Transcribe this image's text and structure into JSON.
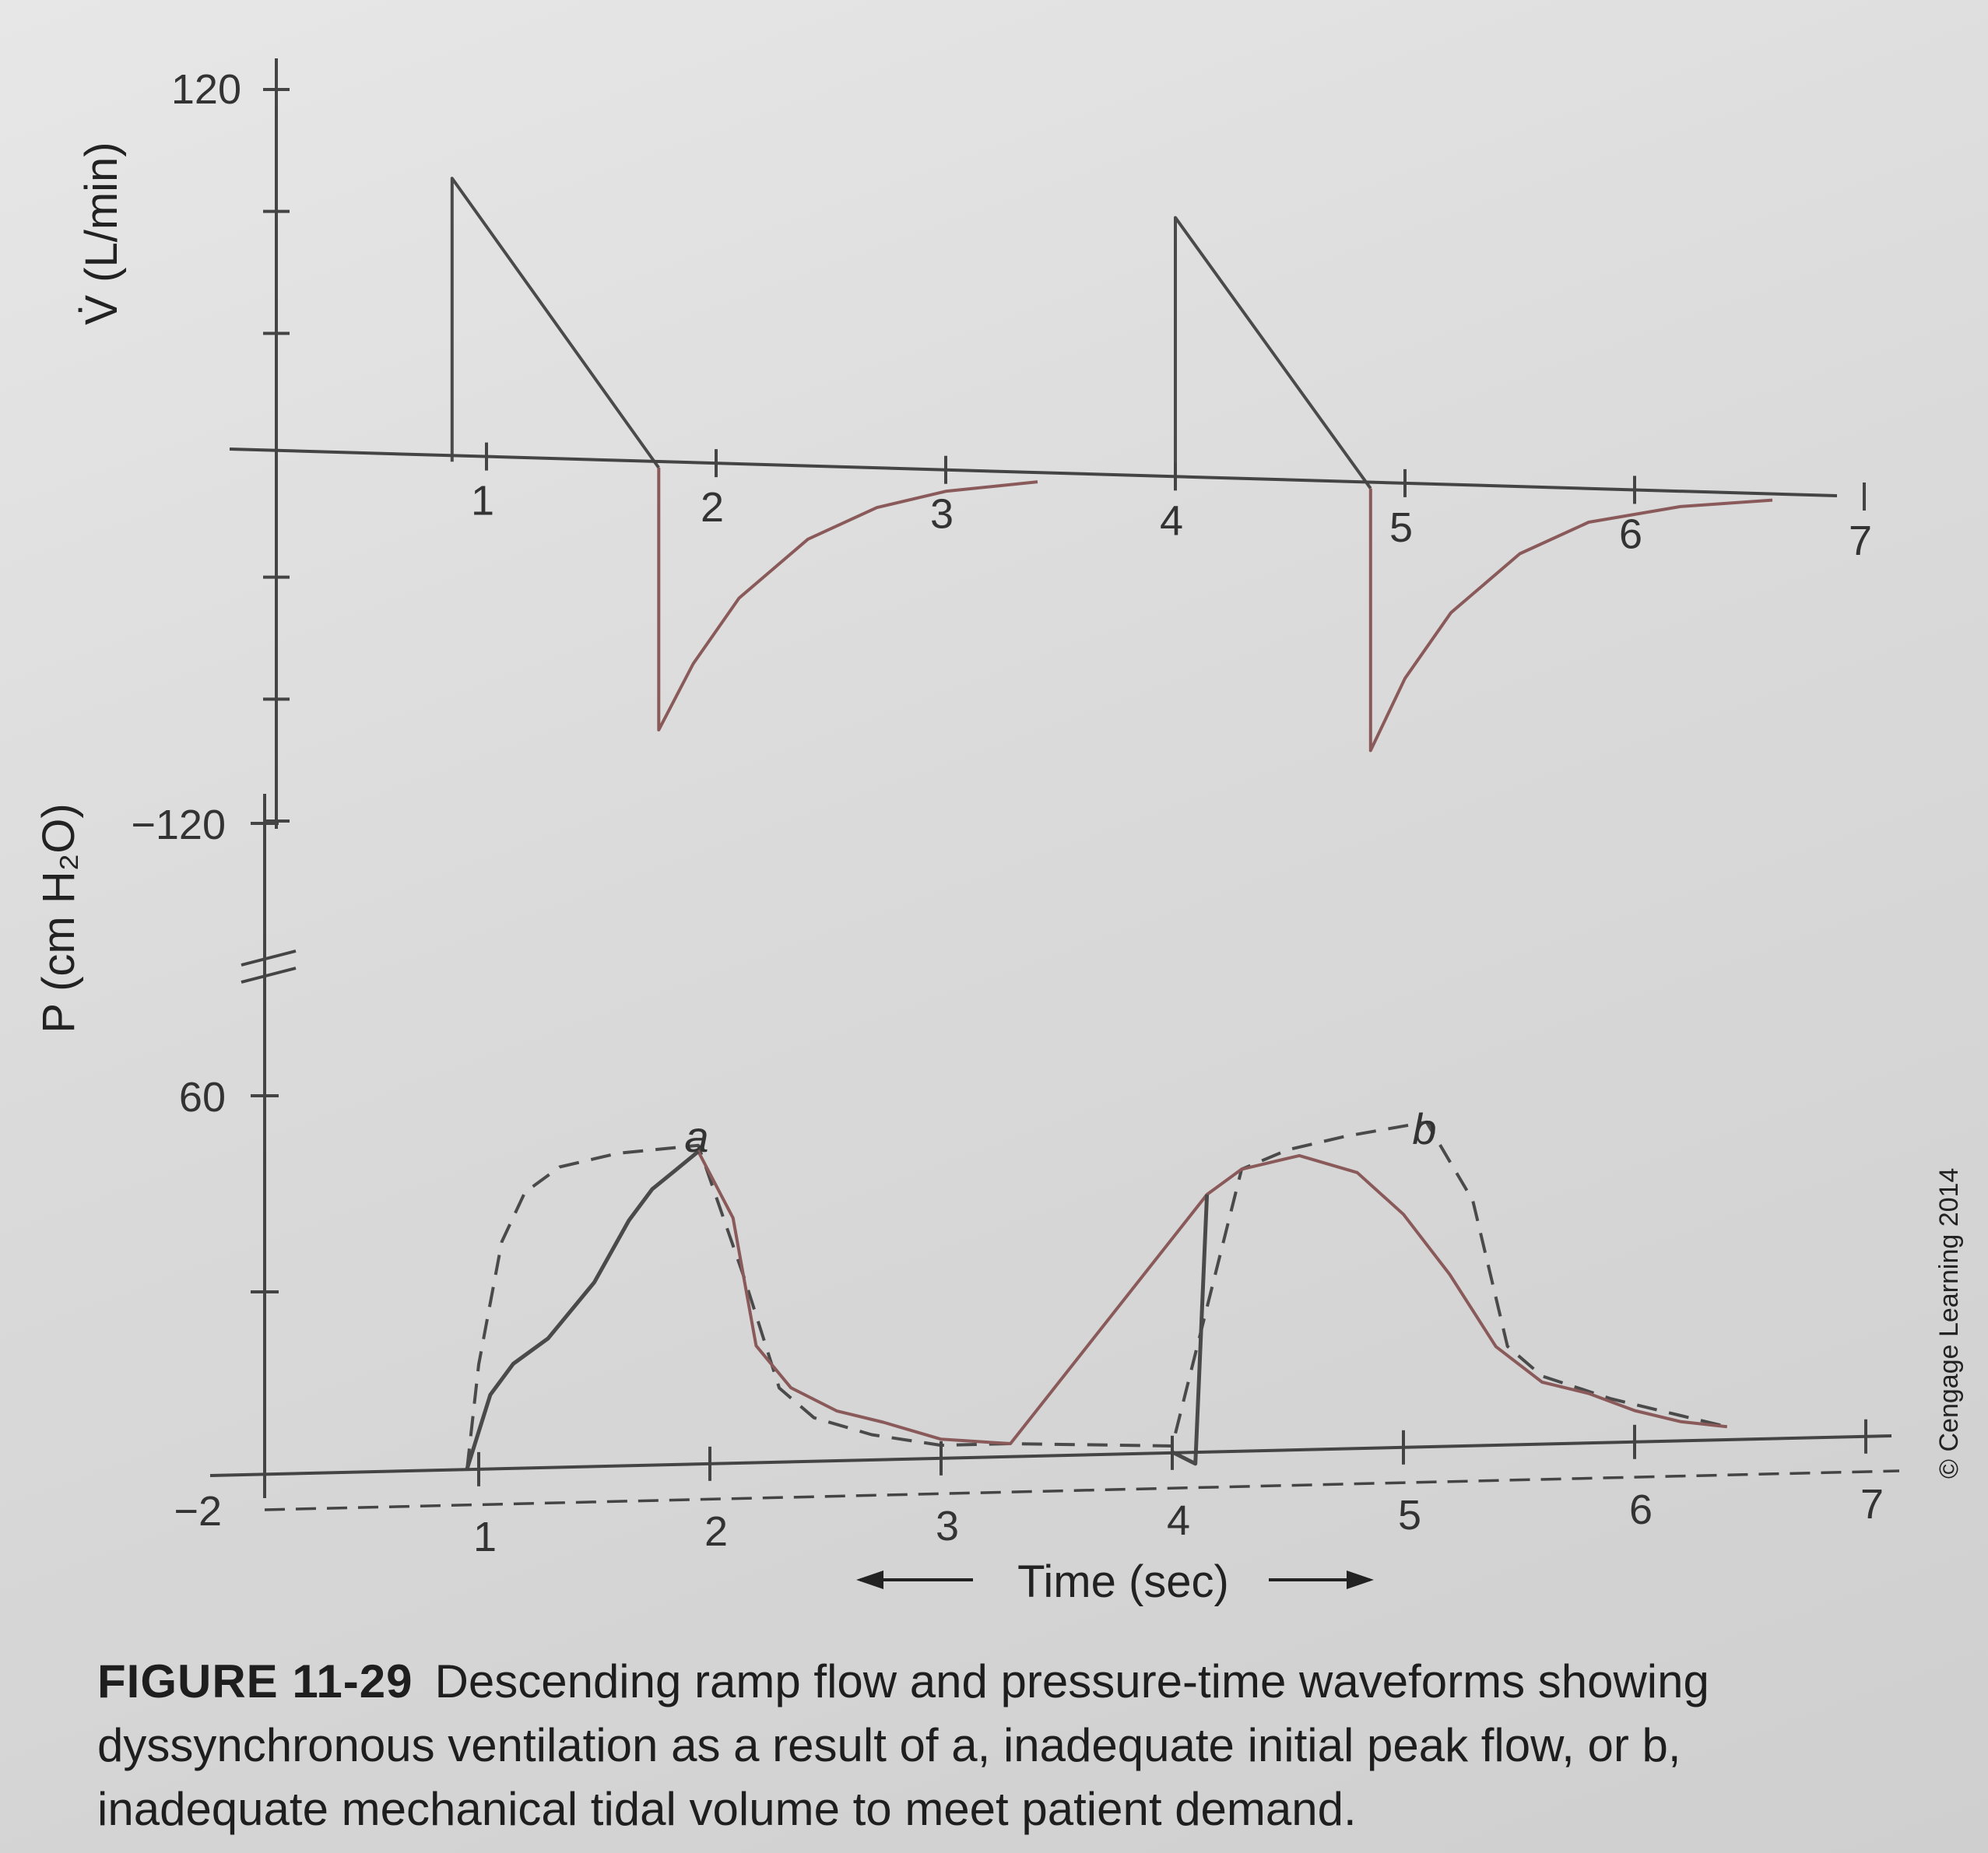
{
  "chart_data": [
    {
      "type": "line",
      "title": "",
      "ylabel": "V̇ (L/min)",
      "xlabel": "",
      "x_ticks": [
        "1",
        "2",
        "3",
        "4",
        "5",
        "6",
        "7"
      ],
      "y_ticks": [
        "120",
        "−120"
      ],
      "xlim": [
        0,
        7
      ],
      "ylim": [
        -120,
        120
      ],
      "series": [
        {
          "color": "#4a4a4a",
          "x": [
            0.85,
            0.85,
            1.75,
            1.75,
            4.0,
            4.0,
            4.85,
            4.85
          ],
          "y": [
            0,
            93,
            0,
            0,
            0,
            87,
            0,
            0
          ]
        },
        {
          "color": "#8a5a5a",
          "x": [
            1.75,
            1.75,
            1.9,
            2.1,
            2.4,
            2.7,
            3.0,
            3.4,
            4.85,
            4.85,
            5.0,
            5.2,
            5.5,
            5.8,
            6.2,
            6.6
          ],
          "y": [
            0,
            -86,
            -64,
            -42,
            -22,
            -11,
            -5,
            -1,
            0,
            -86,
            -62,
            -40,
            -20,
            -9,
            -3,
            0
          ]
        }
      ]
    },
    {
      "type": "line",
      "title": "",
      "ylabel": "P (cm H₂O)",
      "xlabel": "Time (sec)",
      "x_ticks": [
        "1",
        "2",
        "3",
        "4",
        "5",
        "6",
        "7"
      ],
      "y_ticks": [
        "60",
        "−2"
      ],
      "xlim": [
        0,
        7
      ],
      "ylim": [
        -2,
        70
      ],
      "annotations": [
        "a",
        "b"
      ],
      "series": [
        {
          "style": "dashed",
          "color": "#4a4a4a",
          "x": [
            0.95,
            1.0,
            1.1,
            1.2,
            1.35,
            1.6,
            1.95,
            2.15,
            2.3,
            2.45,
            2.7,
            3.0,
            3.3,
            4.0,
            4.3,
            4.5,
            4.75,
            5.1,
            5.3,
            5.45,
            5.6,
            5.9,
            6.2,
            6.4
          ],
          "y": [
            -2,
            15,
            35,
            43,
            47,
            49,
            50,
            28,
            10,
            5,
            2,
            0,
            0,
            -1,
            44,
            47,
            49,
            51,
            38,
            14,
            9,
            5,
            2,
            0
          ]
        },
        {
          "color": "#8a5a5a",
          "x": [
            0.95,
            1.05,
            1.15,
            1.3,
            1.5,
            1.65,
            1.75,
            1.85,
            1.95,
            2.1,
            2.2,
            2.35,
            2.55,
            2.75,
            3.0,
            3.3,
            4.15,
            4.3,
            4.55,
            4.8,
            5.0,
            5.2,
            5.4,
            5.6,
            5.8,
            6.0,
            6.2,
            6.4
          ],
          "y": [
            -2,
            10,
            15,
            19,
            28,
            38,
            43,
            46,
            49,
            38,
            17,
            10,
            6,
            4,
            1,
            0,
            40,
            44,
            46,
            43,
            36,
            26,
            14,
            8,
            6,
            3,
            1,
            0
          ]
        },
        {
          "color": "#4a4a4a",
          "x": [
            0.95,
            1.05,
            1.15,
            1.3,
            1.5,
            1.65,
            1.75,
            1.85,
            1.95,
            4.0,
            4.1,
            4.15
          ],
          "y": [
            -2,
            10,
            15,
            19,
            28,
            38,
            43,
            46,
            49,
            -2,
            -4,
            40
          ]
        }
      ]
    }
  ],
  "caption": {
    "figure_number": "FIGURE 11-29",
    "text": "Descending ramp flow and pressure-time waveforms showing dyssynchronous ventilation as a result of a, inadequate initial peak flow, or b, inadequate mechanical tidal volume to meet patient demand."
  },
  "credit": "© Cengage Learning 2014"
}
